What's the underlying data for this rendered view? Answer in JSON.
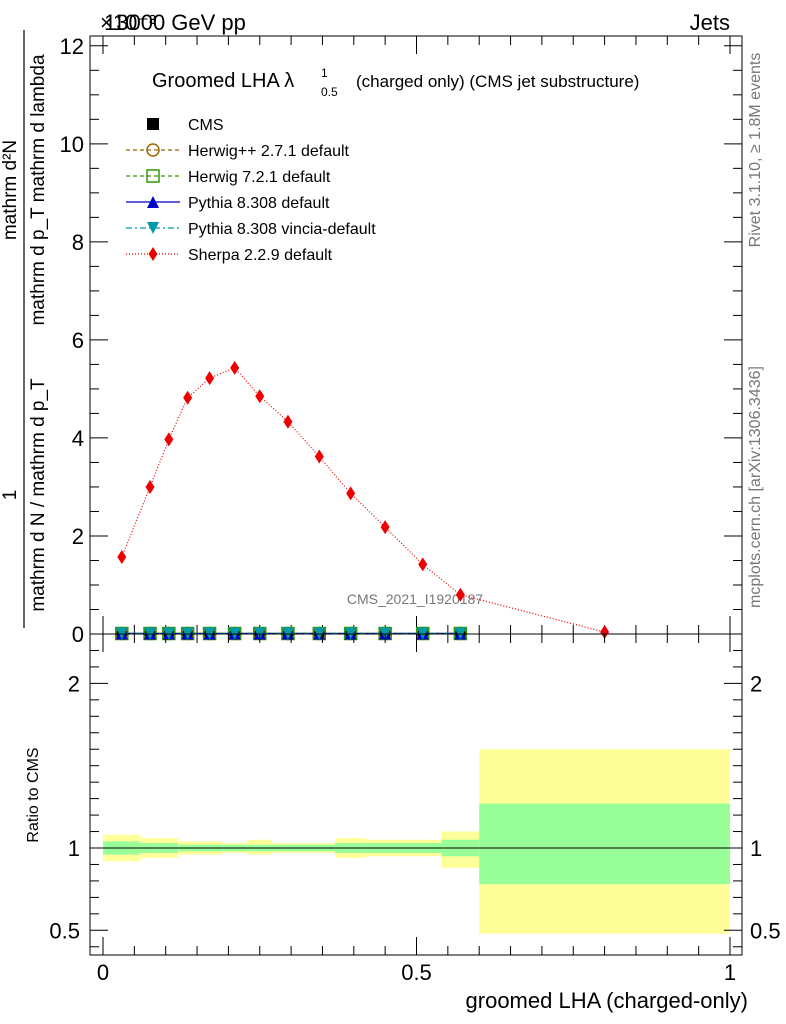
{
  "header": {
    "left": "13000 GeV pp",
    "right": "Jets",
    "exponent": "×10⁻³"
  },
  "side_text": {
    "rivet": "Rivet 3.1.10, ≥ 1.8M events",
    "mcplots": "mcplots.cern.ch [arXiv:1306.3436]"
  },
  "watermark": "CMS_2021_I1920187",
  "chart_data": [
    {
      "type": "scatter",
      "title": "Groomed LHA λ",
      "title_sup": "1",
      "title_sub": "0.5",
      "title_suffix": "(charged only) (CMS jet substructure)",
      "ylabel_num": "mathrm d²N",
      "ylabel_den": "mathrm d p_T mathrm d lambda",
      "ylabel_prefix_num": "1",
      "ylabel_prefix_den": "mathrm d N / mathrm d p_T",
      "xlim": [
        0,
        1
      ],
      "ylim": [
        0,
        12.2
      ],
      "y_ticks": [
        0,
        2,
        4,
        6,
        8,
        10,
        12
      ],
      "y_tick_labels": [
        "0",
        "2",
        "4",
        "6",
        "8",
        "10",
        "12"
      ],
      "legend_placement": "top-left",
      "series": [
        {
          "name": "CMS",
          "color": "#000000",
          "marker": "square",
          "x": [
            0.03,
            0.075,
            0.105,
            0.135,
            0.17,
            0.21,
            0.25,
            0.295,
            0.345,
            0.395,
            0.45,
            0.51,
            0.57
          ],
          "y": [
            0.01,
            0.01,
            0.01,
            0.01,
            0.01,
            0.01,
            0.01,
            0.01,
            0.01,
            0.01,
            0.01,
            0.01,
            0.01
          ]
        },
        {
          "name": "Herwig++ 2.7.1 default",
          "color": "#996600",
          "marker": "circle-open",
          "dash": "4,3",
          "x": [
            0.03,
            0.075,
            0.105,
            0.135,
            0.17,
            0.21,
            0.25,
            0.295,
            0.345,
            0.395,
            0.45,
            0.51,
            0.57
          ],
          "y": [
            0.01,
            0.01,
            0.01,
            0.01,
            0.01,
            0.01,
            0.01,
            0.01,
            0.01,
            0.01,
            0.01,
            0.01,
            0.01
          ]
        },
        {
          "name": "Herwig 7.2.1 default",
          "color": "#339900",
          "marker": "square-open",
          "dash": "4,3",
          "x": [
            0.03,
            0.075,
            0.105,
            0.135,
            0.17,
            0.21,
            0.25,
            0.295,
            0.345,
            0.395,
            0.45,
            0.51,
            0.57
          ],
          "y": [
            0.01,
            0.01,
            0.01,
            0.01,
            0.01,
            0.01,
            0.01,
            0.01,
            0.01,
            0.01,
            0.01,
            0.01,
            0.01
          ]
        },
        {
          "name": "Pythia 8.308 default",
          "color": "#0000cc",
          "marker": "triangle-up",
          "x": [
            0.03,
            0.075,
            0.105,
            0.135,
            0.17,
            0.21,
            0.25,
            0.295,
            0.345,
            0.395,
            0.45,
            0.51,
            0.57
          ],
          "y": [
            0.01,
            0.01,
            0.01,
            0.01,
            0.01,
            0.01,
            0.01,
            0.01,
            0.01,
            0.01,
            0.01,
            0.01,
            0.01
          ]
        },
        {
          "name": "Pythia 8.308 vincia-default",
          "color": "#0099aa",
          "marker": "triangle-down",
          "dash": "6,3,2,3",
          "x": [
            0.03,
            0.075,
            0.105,
            0.135,
            0.17,
            0.21,
            0.25,
            0.295,
            0.345,
            0.395,
            0.45,
            0.51,
            0.57
          ],
          "y": [
            0.01,
            0.01,
            0.01,
            0.01,
            0.01,
            0.01,
            0.01,
            0.01,
            0.01,
            0.01,
            0.01,
            0.01,
            0.01
          ]
        },
        {
          "name": "Sherpa 2.2.9 default",
          "color": "#ee0000",
          "marker": "diamond",
          "dash": "1,2",
          "x": [
            0.03,
            0.075,
            0.105,
            0.135,
            0.17,
            0.21,
            0.25,
            0.295,
            0.345,
            0.395,
            0.45,
            0.51,
            0.57,
            0.8
          ],
          "y": [
            1.57,
            3.0,
            3.97,
            4.82,
            5.22,
            5.43,
            4.85,
            4.33,
            3.62,
            2.87,
            2.18,
            1.42,
            0.8,
            0.04
          ]
        }
      ]
    },
    {
      "type": "area",
      "ylabel": "Ratio to CMS",
      "xlabel": "groomed LHA (charged-only)",
      "xlim": [
        0,
        1
      ],
      "ylim": [
        0.35,
        2.3
      ],
      "x_ticks": [
        0,
        0.5,
        1
      ],
      "x_tick_labels": [
        "0",
        "0.5",
        "1"
      ],
      "y_ticks": [
        0.5,
        1,
        2
      ],
      "y_tick_labels": [
        "0.5",
        "1",
        "2"
      ],
      "reference_line": 1,
      "bands": [
        {
          "x0": 0.0,
          "x1": 0.06,
          "inner": [
            0.96,
            1.04
          ],
          "outer": [
            0.92,
            1.08
          ]
        },
        {
          "x0": 0.06,
          "x1": 0.09,
          "inner": [
            0.97,
            1.03
          ],
          "outer": [
            0.94,
            1.06
          ]
        },
        {
          "x0": 0.09,
          "x1": 0.12,
          "inner": [
            0.97,
            1.03
          ],
          "outer": [
            0.94,
            1.06
          ]
        },
        {
          "x0": 0.12,
          "x1": 0.15,
          "inner": [
            0.98,
            1.02
          ],
          "outer": [
            0.96,
            1.04
          ]
        },
        {
          "x0": 0.15,
          "x1": 0.19,
          "inner": [
            0.98,
            1.02
          ],
          "outer": [
            0.96,
            1.04
          ]
        },
        {
          "x0": 0.19,
          "x1": 0.23,
          "inner": [
            0.98,
            1.02
          ],
          "outer": [
            0.97,
            1.03
          ]
        },
        {
          "x0": 0.23,
          "x1": 0.27,
          "inner": [
            0.98,
            1.02
          ],
          "outer": [
            0.96,
            1.05
          ]
        },
        {
          "x0": 0.27,
          "x1": 0.32,
          "inner": [
            0.98,
            1.02
          ],
          "outer": [
            0.97,
            1.03
          ]
        },
        {
          "x0": 0.32,
          "x1": 0.37,
          "inner": [
            0.98,
            1.02
          ],
          "outer": [
            0.97,
            1.03
          ]
        },
        {
          "x0": 0.37,
          "x1": 0.42,
          "inner": [
            0.97,
            1.03
          ],
          "outer": [
            0.94,
            1.06
          ]
        },
        {
          "x0": 0.42,
          "x1": 0.48,
          "inner": [
            0.97,
            1.03
          ],
          "outer": [
            0.95,
            1.05
          ]
        },
        {
          "x0": 0.48,
          "x1": 0.54,
          "inner": [
            0.97,
            1.03
          ],
          "outer": [
            0.95,
            1.05
          ]
        },
        {
          "x0": 0.54,
          "x1": 0.6,
          "inner": [
            0.95,
            1.05
          ],
          "outer": [
            0.88,
            1.1
          ]
        },
        {
          "x0": 0.6,
          "x1": 1.0,
          "inner": [
            0.78,
            1.27
          ],
          "outer": [
            0.48,
            1.6
          ]
        }
      ]
    }
  ]
}
